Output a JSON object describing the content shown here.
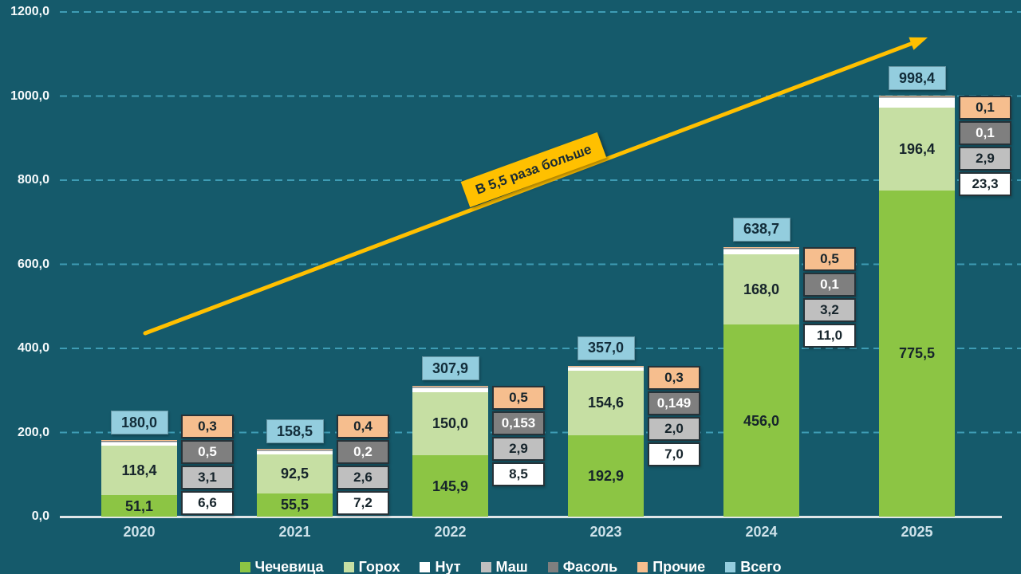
{
  "annotation": {
    "label": "В 5,5 раза больше"
  },
  "y_axis": {
    "tick_labels": [
      "0,0",
      "200,0",
      "400,0",
      "600,0",
      "800,0",
      "1000,0",
      "1200,0"
    ],
    "tick_step": 200
  },
  "x_axis": {
    "categories": [
      "2020",
      "2021",
      "2022",
      "2023",
      "2024",
      "2025"
    ]
  },
  "chart_data": {
    "type": "bar",
    "stacked": true,
    "title": "",
    "xlabel": "",
    "ylabel": "",
    "ylim": [
      0,
      1200
    ],
    "y_tick_step": 200,
    "grid": true,
    "legend_position": "bottom",
    "annotation": "В 5,5 раза больше",
    "categories": [
      "2020",
      "2021",
      "2022",
      "2023",
      "2024",
      "2025"
    ],
    "series": [
      {
        "name": "Чечевица",
        "color": "#8CC544",
        "text_color": "#16242B",
        "label_in_bar": true,
        "callout": false,
        "values": [
          51.1,
          55.5,
          145.9,
          192.9,
          456.0,
          775.5
        ],
        "labels": [
          "51,1",
          "55,5",
          "145,9",
          "192,9",
          "456,0",
          "775,5"
        ]
      },
      {
        "name": "Горох",
        "color": "#C6DFA3",
        "text_color": "#16242B",
        "label_in_bar": true,
        "callout": false,
        "values": [
          118.4,
          92.5,
          150.0,
          154.6,
          168.0,
          196.4
        ],
        "labels": [
          "118,4",
          "92,5",
          "150,0",
          "154,6",
          "168,0",
          "196,4"
        ]
      },
      {
        "name": "Нут",
        "color": "#FFFFFF",
        "text_color": "#16242B",
        "label_in_bar": false,
        "callout": true,
        "values": [
          6.6,
          7.2,
          8.5,
          7.0,
          11.0,
          23.3
        ],
        "labels": [
          "6,6",
          "7,2",
          "8,5",
          "7,0",
          "11,0",
          "23,3"
        ]
      },
      {
        "name": "Маш",
        "color": "#BFBFBF",
        "text_color": "#16242B",
        "label_in_bar": false,
        "callout": true,
        "values": [
          3.1,
          2.6,
          2.9,
          2.0,
          3.2,
          2.9
        ],
        "labels": [
          "3,1",
          "2,6",
          "2,9",
          "2,0",
          "3,2",
          "2,9"
        ]
      },
      {
        "name": "Фасоль",
        "color": "#7F7F7F",
        "text_color": "#FFFFFF",
        "label_in_bar": false,
        "callout": true,
        "values": [
          0.5,
          0.2,
          0.153,
          0.149,
          0.1,
          0.1
        ],
        "labels": [
          "0,5",
          "0,2",
          "0,153",
          "0,149",
          "0,1",
          "0,1"
        ]
      },
      {
        "name": "Прочие",
        "color": "#F6BE8E",
        "text_color": "#16242B",
        "label_in_bar": false,
        "callout": true,
        "values": [
          0.3,
          0.4,
          0.5,
          0.3,
          0.5,
          0.1
        ],
        "labels": [
          "0,3",
          "0,4",
          "0,5",
          "0,3",
          "0,5",
          "0,1"
        ]
      }
    ],
    "totals": {
      "name": "Всего",
      "color": "#93CDDE",
      "text_color": "#122D3A",
      "values": [
        180.0,
        158.5,
        307.9,
        357.0,
        638.7,
        998.4
      ],
      "labels": [
        "180,0",
        "158,5",
        "307,9",
        "357,0",
        "638,7",
        "998,4"
      ]
    }
  },
  "legend": {
    "items": [
      {
        "label": "Чечевица",
        "color": "#8CC544"
      },
      {
        "label": "Горох",
        "color": "#C6DFA3"
      },
      {
        "label": "Нут",
        "color": "#FFFFFF"
      },
      {
        "label": "Маш",
        "color": "#BFBFBF"
      },
      {
        "label": "Фасоль",
        "color": "#7F7F7F"
      },
      {
        "label": "Прочие",
        "color": "#F6BE8E"
      },
      {
        "label": "Всего",
        "color": "#93CDDE"
      }
    ]
  },
  "colors": {
    "background": "#155A6B",
    "gridline": "#3E9CB4",
    "axis_line": "#DFE6E8",
    "y_tick_text": "#F6FAFB",
    "x_tick_text": "#CEE2EA",
    "bar_label_text": "#16242B",
    "legend_text": "#FFFFFF",
    "arrow": "#FFC000",
    "annotation_bg": "#FFC000",
    "annotation_text": "#1A2B33",
    "callout_border": "#263238"
  }
}
